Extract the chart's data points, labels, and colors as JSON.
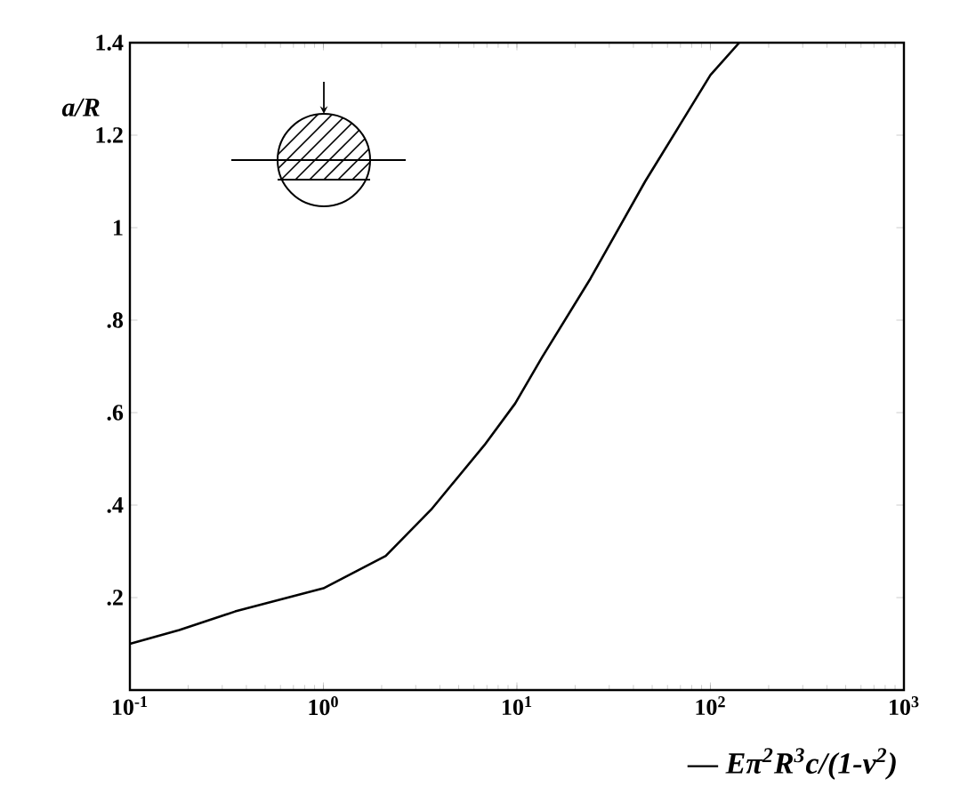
{
  "chart_data": {
    "type": "line",
    "xlabel": "— Eπ$^{2}$R$^{3}$c/(1-ν$^{2}$)",
    "ylabel": "a/R",
    "x": [
      0.1,
      0.18,
      0.35,
      1.0,
      2.1,
      3.6,
      6.8,
      9.8,
      13.5,
      24,
      46,
      69,
      100,
      141
    ],
    "series": [
      {
        "color": "#000000",
        "values": [
          0.1,
          0.13,
          0.17,
          0.22,
          0.29,
          0.39,
          0.53,
          0.62,
          0.72,
          0.89,
          1.1,
          1.22,
          1.33,
          1.4
        ]
      }
    ],
    "xlim": [
      0.1,
      1000
    ],
    "ylim": [
      0,
      1.4
    ],
    "log": "x",
    "xticks": [
      {
        "value": 0.1,
        "label": "10$^{-1}$"
      },
      {
        "value": 1,
        "label": "10$^{0}$"
      },
      {
        "value": 10,
        "label": "10$^{1}$"
      },
      {
        "value": 100,
        "label": "10$^{2}$"
      },
      {
        "value": 1000,
        "label": "10$^{3}$"
      }
    ],
    "yticks": [
      {
        "value": 0.2,
        "label": ".2"
      },
      {
        "value": 0.4,
        "label": ".4"
      },
      {
        "value": 0.6,
        "label": ".6"
      },
      {
        "value": 0.8,
        "label": ".8"
      },
      1,
      {
        "value": 1.2,
        "label": "1.2"
      },
      {
        "value": 1.4,
        "label": "1.4"
      }
    ],
    "marker": "none",
    "line_style": "solid"
  }
}
